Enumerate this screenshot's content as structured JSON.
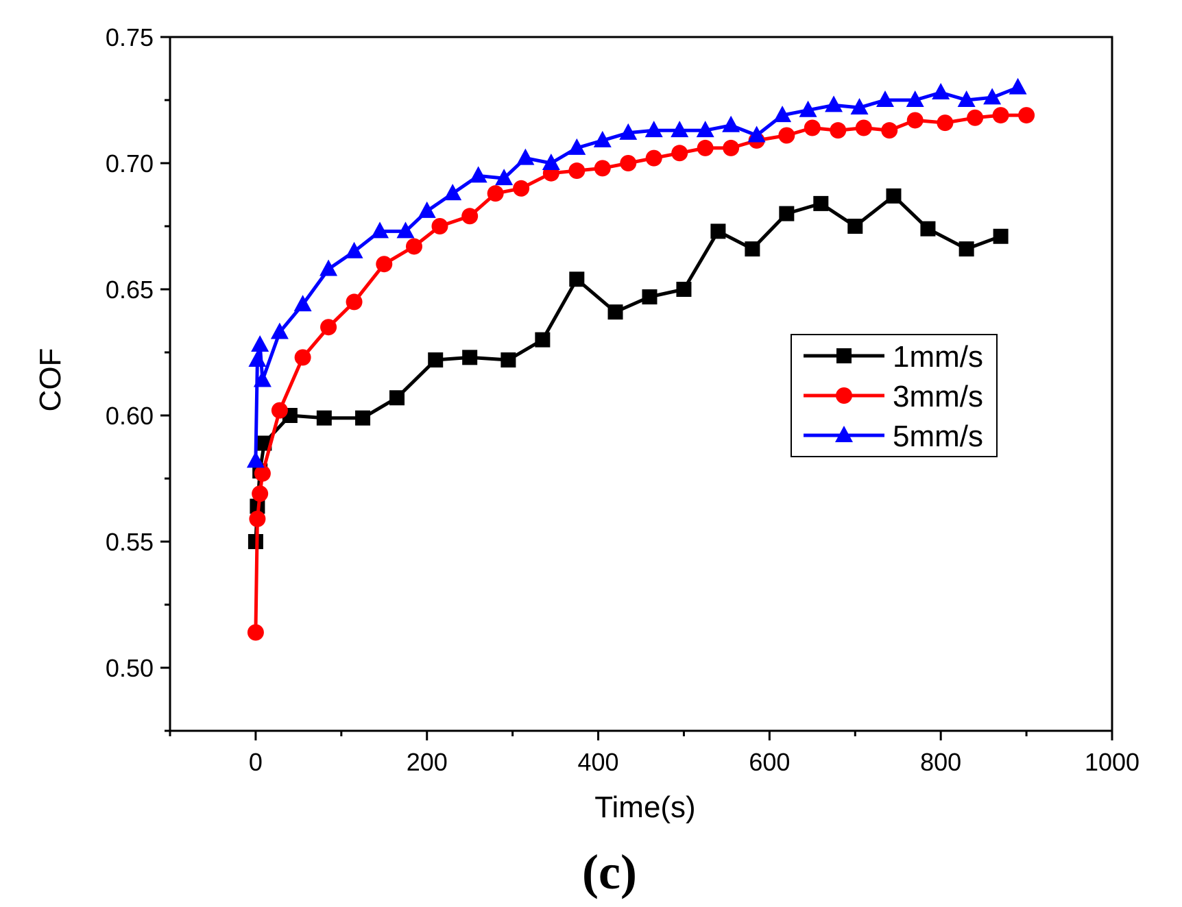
{
  "chart_data": {
    "type": "line",
    "title": "",
    "xlabel": "Time(s)",
    "ylabel": "COF",
    "panel_label": "(c)",
    "xlim": [
      -100,
      1000
    ],
    "ylim": [
      0.475,
      0.75
    ],
    "x_ticks": [
      0,
      200,
      400,
      600,
      800,
      1000
    ],
    "x_tick_labels": [
      "0",
      "200",
      "400",
      "600",
      "800",
      "1000"
    ],
    "y_ticks": [
      0.5,
      0.55,
      0.6,
      0.65,
      0.7,
      0.75
    ],
    "y_tick_labels": [
      "0.50",
      "0.55",
      "0.60",
      "0.65",
      "0.70",
      "0.75"
    ],
    "grid": false,
    "legend_position": "center-right",
    "series": [
      {
        "name": "1mm/s",
        "color": "#000000",
        "marker": "square",
        "x": [
          0,
          2,
          5,
          10,
          40,
          80,
          125,
          165,
          210,
          250,
          295,
          335,
          375,
          420,
          460,
          500,
          540,
          580,
          620,
          660,
          700,
          745,
          785,
          830,
          870
        ],
        "y": [
          0.55,
          0.564,
          0.578,
          0.589,
          0.6,
          0.599,
          0.599,
          0.607,
          0.622,
          0.623,
          0.622,
          0.63,
          0.654,
          0.641,
          0.647,
          0.65,
          0.673,
          0.666,
          0.68,
          0.684,
          0.675,
          0.687,
          0.674,
          0.666,
          0.671
        ]
      },
      {
        "name": "3mm/s",
        "color": "#ff0000",
        "marker": "circle",
        "x": [
          0,
          2,
          5,
          8,
          28,
          55,
          85,
          115,
          150,
          185,
          215,
          250,
          280,
          310,
          345,
          375,
          405,
          435,
          465,
          495,
          525,
          555,
          585,
          620,
          650,
          680,
          710,
          740,
          770,
          805,
          840,
          870,
          900
        ],
        "y": [
          0.514,
          0.559,
          0.569,
          0.577,
          0.602,
          0.623,
          0.635,
          0.645,
          0.66,
          0.667,
          0.675,
          0.679,
          0.688,
          0.69,
          0.696,
          0.697,
          0.698,
          0.7,
          0.702,
          0.704,
          0.706,
          0.706,
          0.709,
          0.711,
          0.714,
          0.713,
          0.714,
          0.713,
          0.717,
          0.716,
          0.718,
          0.719,
          0.719
        ]
      },
      {
        "name": "5mm/s",
        "color": "#0000ff",
        "marker": "triangle",
        "x": [
          0,
          2,
          5,
          8,
          28,
          55,
          85,
          115,
          145,
          175,
          200,
          230,
          260,
          290,
          315,
          345,
          375,
          405,
          435,
          465,
          495,
          525,
          555,
          585,
          615,
          645,
          675,
          705,
          735,
          770,
          800,
          830,
          860,
          890
        ],
        "y": [
          0.582,
          0.622,
          0.628,
          0.614,
          0.633,
          0.644,
          0.658,
          0.665,
          0.673,
          0.673,
          0.681,
          0.688,
          0.695,
          0.694,
          0.702,
          0.7,
          0.706,
          0.709,
          0.712,
          0.713,
          0.713,
          0.713,
          0.715,
          0.711,
          0.719,
          0.721,
          0.723,
          0.722,
          0.725,
          0.725,
          0.728,
          0.725,
          0.726,
          0.73
        ]
      }
    ]
  }
}
